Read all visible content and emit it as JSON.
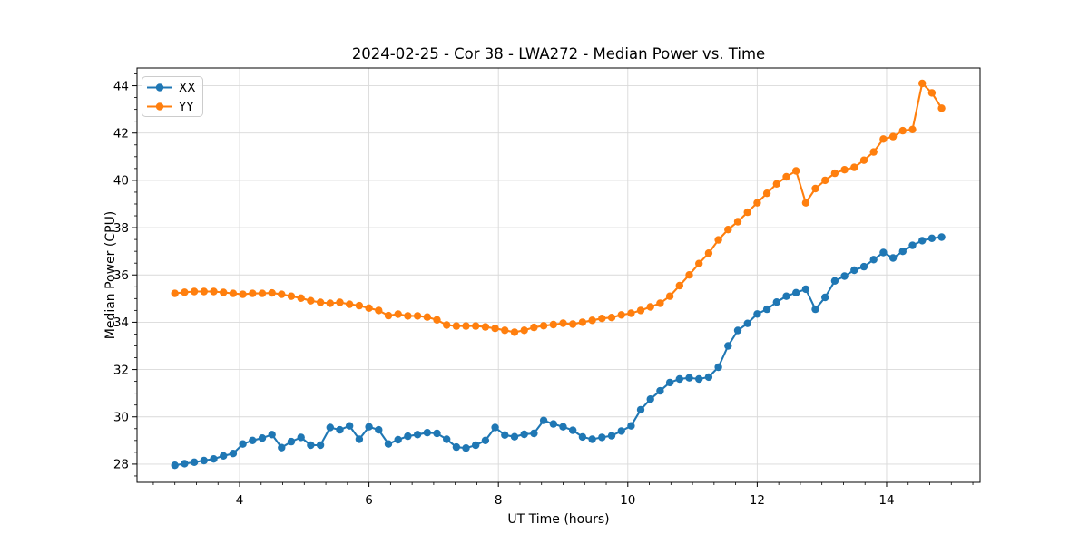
{
  "figure": {
    "background": "#ffffff"
  },
  "chart_data": {
    "type": "line",
    "title": "2024-02-25 - Cor 38 - LWA272 - Median Power vs. Time",
    "xlabel": "UT Time (hours)",
    "ylabel": "Median Power (CPU)",
    "xlim": [
      2.415,
      15.445
    ],
    "ylim": [
      27.23,
      44.75
    ],
    "xticks": [
      4,
      6,
      8,
      10,
      12,
      14
    ],
    "yticks": [
      28,
      30,
      32,
      34,
      36,
      38,
      40,
      42,
      44
    ],
    "x_minor_per_unit": 3,
    "y_minor_per_unit": 2,
    "grid": true,
    "legend_position": "upper left",
    "marker": "o",
    "x": [
      3.0,
      3.15,
      3.3,
      3.45,
      3.6,
      3.75,
      3.9,
      4.05,
      4.2,
      4.35,
      4.5,
      4.65,
      4.8,
      4.95,
      5.1,
      5.25,
      5.4,
      5.55,
      5.7,
      5.85,
      6.0,
      6.15,
      6.3,
      6.45,
      6.6,
      6.75,
      6.9,
      7.05,
      7.2,
      7.35,
      7.5,
      7.65,
      7.8,
      7.95,
      8.1,
      8.25,
      8.4,
      8.55,
      8.7,
      8.85,
      9.0,
      9.15,
      9.3,
      9.45,
      9.6,
      9.75,
      9.9,
      10.05,
      10.2,
      10.35,
      10.5,
      10.65,
      10.8,
      10.95,
      11.1,
      11.25,
      11.4,
      11.55,
      11.7,
      11.85,
      12.0,
      12.15,
      12.3,
      12.45,
      12.6,
      12.75,
      12.9,
      13.05,
      13.2,
      13.35,
      13.5,
      13.65,
      13.8,
      13.95,
      14.1,
      14.25,
      14.4,
      14.55,
      14.7,
      14.85
    ],
    "series": [
      {
        "name": "XX",
        "color": "#1f77b4",
        "values": [
          27.95,
          28.02,
          28.08,
          28.15,
          28.22,
          28.35,
          28.45,
          28.85,
          29.0,
          29.1,
          29.25,
          28.7,
          28.95,
          29.13,
          28.8,
          28.8,
          29.55,
          29.45,
          29.62,
          29.05,
          29.58,
          29.45,
          28.85,
          29.03,
          29.18,
          29.25,
          29.33,
          29.3,
          29.05,
          28.72,
          28.68,
          28.8,
          29.0,
          29.55,
          29.23,
          29.16,
          29.26,
          29.3,
          29.85,
          29.7,
          29.58,
          29.43,
          29.15,
          29.05,
          29.13,
          29.2,
          29.4,
          29.62,
          30.3,
          30.75,
          31.1,
          31.45,
          31.6,
          31.65,
          31.6,
          31.68,
          32.1,
          33.0,
          33.65,
          33.95,
          34.35,
          34.55,
          34.85,
          35.1,
          35.25,
          35.4,
          34.55,
          35.05,
          35.75,
          35.95,
          36.2,
          36.35,
          36.65,
          36.95,
          36.72,
          37.0,
          37.25,
          37.45,
          37.55,
          37.6
        ]
      },
      {
        "name": "YY",
        "color": "#ff7f0e",
        "values": [
          35.22,
          35.27,
          35.3,
          35.3,
          35.3,
          35.26,
          35.22,
          35.18,
          35.22,
          35.22,
          35.24,
          35.18,
          35.1,
          35.02,
          34.91,
          34.84,
          34.8,
          34.84,
          34.76,
          34.7,
          34.6,
          34.5,
          34.28,
          34.34,
          34.27,
          34.27,
          34.22,
          34.1,
          33.88,
          33.84,
          33.84,
          33.84,
          33.8,
          33.74,
          33.66,
          33.58,
          33.66,
          33.78,
          33.85,
          33.9,
          33.96,
          33.92,
          34.0,
          34.08,
          34.16,
          34.2,
          34.31,
          34.38,
          34.5,
          34.65,
          34.8,
          35.1,
          35.55,
          36.0,
          36.48,
          36.92,
          37.48,
          37.92,
          38.25,
          38.65,
          39.05,
          39.45,
          39.85,
          40.15,
          40.4,
          39.05,
          39.65,
          40.0,
          40.3,
          40.45,
          40.55,
          40.85,
          41.2,
          41.75,
          41.85,
          42.1,
          42.15,
          44.1,
          43.7,
          43.05
        ]
      }
    ]
  }
}
